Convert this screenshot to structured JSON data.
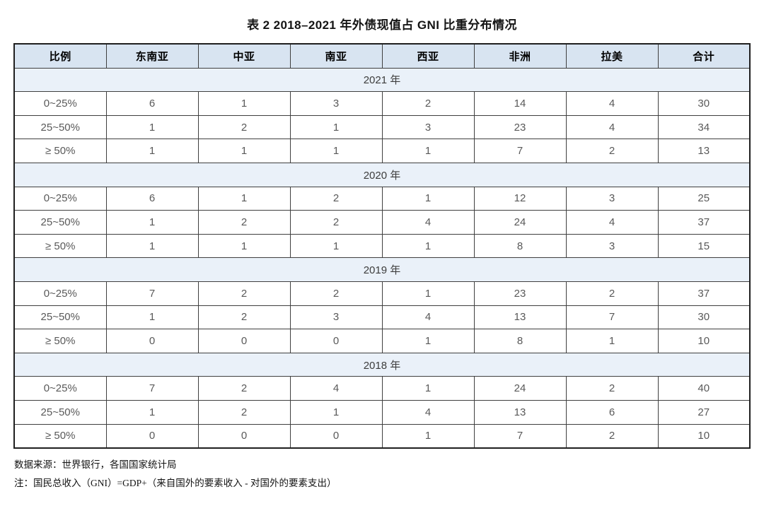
{
  "title": "表 2  2018–2021 年外债现值占 GNI 比重分布情况",
  "table": {
    "columns": [
      "比例",
      "东南亚",
      "中亚",
      "南亚",
      "西亚",
      "非洲",
      "拉美",
      "合计"
    ],
    "sections": [
      {
        "year_label": "2021 年",
        "rows": [
          {
            "label": "0~25%",
            "values": [
              6,
              1,
              3,
              2,
              14,
              4,
              30
            ]
          },
          {
            "label": "25~50%",
            "values": [
              1,
              2,
              1,
              3,
              23,
              4,
              34
            ]
          },
          {
            "label": "≥ 50%",
            "values": [
              1,
              1,
              1,
              1,
              7,
              2,
              13
            ]
          }
        ]
      },
      {
        "year_label": "2020 年",
        "rows": [
          {
            "label": "0~25%",
            "values": [
              6,
              1,
              2,
              1,
              12,
              3,
              25
            ]
          },
          {
            "label": "25~50%",
            "values": [
              1,
              2,
              2,
              4,
              24,
              4,
              37
            ]
          },
          {
            "label": "≥ 50%",
            "values": [
              1,
              1,
              1,
              1,
              8,
              3,
              15
            ]
          }
        ]
      },
      {
        "year_label": "2019 年",
        "rows": [
          {
            "label": "0~25%",
            "values": [
              7,
              2,
              2,
              1,
              23,
              2,
              37
            ]
          },
          {
            "label": "25~50%",
            "values": [
              1,
              2,
              3,
              4,
              13,
              7,
              30
            ]
          },
          {
            "label": "≥ 50%",
            "values": [
              0,
              0,
              0,
              1,
              8,
              1,
              10
            ]
          }
        ]
      },
      {
        "year_label": "2018 年",
        "rows": [
          {
            "label": "0~25%",
            "values": [
              7,
              2,
              4,
              1,
              24,
              2,
              40
            ]
          },
          {
            "label": "25~50%",
            "values": [
              1,
              2,
              1,
              4,
              13,
              6,
              27
            ]
          },
          {
            "label": "≥ 50%",
            "values": [
              0,
              0,
              0,
              1,
              7,
              2,
              10
            ]
          }
        ]
      }
    ]
  },
  "footnotes": [
    "数据来源：世界银行，各国国家统计局",
    "注：国民总收入（GNI）=GDP+（来自国外的要素收入 - 对国外的要素支出）"
  ],
  "chart_data": {
    "type": "table",
    "title": "表 2 2018–2021 年外债现值占 GNI 比重分布情况",
    "columns": [
      "比例",
      "东南亚",
      "中亚",
      "南亚",
      "西亚",
      "非洲",
      "拉美",
      "合计"
    ],
    "groups": {
      "2021": {
        "0~25%": [
          6,
          1,
          3,
          2,
          14,
          4,
          30
        ],
        "25~50%": [
          1,
          2,
          1,
          3,
          23,
          4,
          34
        ],
        "≥50%": [
          1,
          1,
          1,
          1,
          7,
          2,
          13
        ]
      },
      "2020": {
        "0~25%": [
          6,
          1,
          2,
          1,
          12,
          3,
          25
        ],
        "25~50%": [
          1,
          2,
          2,
          4,
          24,
          4,
          37
        ],
        "≥50%": [
          1,
          1,
          1,
          1,
          8,
          3,
          15
        ]
      },
      "2019": {
        "0~25%": [
          7,
          2,
          2,
          1,
          23,
          2,
          37
        ],
        "25~50%": [
          1,
          2,
          3,
          4,
          13,
          7,
          30
        ],
        "≥50%": [
          0,
          0,
          0,
          1,
          8,
          1,
          10
        ]
      },
      "2018": {
        "0~25%": [
          7,
          2,
          4,
          1,
          24,
          2,
          40
        ],
        "25~50%": [
          1,
          2,
          1,
          4,
          13,
          6,
          27
        ],
        "≥50%": [
          0,
          0,
          0,
          1,
          7,
          2,
          10
        ]
      }
    }
  },
  "colors": {
    "header_bg": "#d8e4f1",
    "year_band_bg": "#eaf1f9",
    "border": "#3f3f3f",
    "outer_border": "#1f1f1f",
    "data_text": "#595959",
    "header_text": "#000000"
  }
}
